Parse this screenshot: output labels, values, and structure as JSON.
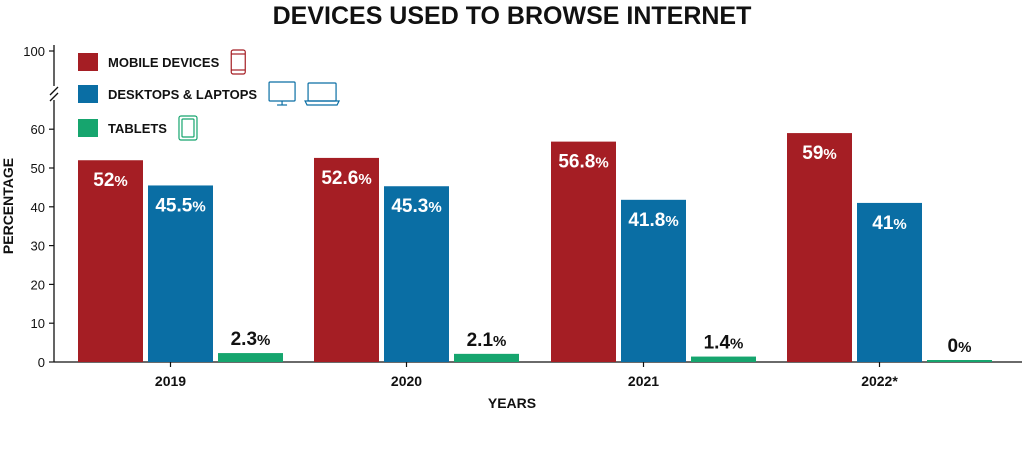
{
  "chart_data": {
    "type": "bar",
    "title": "DEVICES USED TO BROWSE INTERNET",
    "xlabel": "YEARS",
    "ylabel": "PERCENTAGE",
    "categories": [
      "2019",
      "2020",
      "2021",
      "2022*"
    ],
    "series": [
      {
        "name": "MOBILE DEVICES",
        "color": "#a51e24",
        "icon": "smartphone-icon",
        "values": [
          52,
          52.6,
          56.8,
          59
        ],
        "labels": [
          "52",
          "52.6",
          "56.8",
          "59"
        ]
      },
      {
        "name": "DESKTOPS & LAPTOPS",
        "color": "#0a6ea4",
        "icon": "desktop-laptop-icon",
        "values": [
          45.5,
          45.3,
          41.8,
          41
        ],
        "labels": [
          "45.5",
          "45.3",
          "41.8",
          "41"
        ]
      },
      {
        "name": "TABLETS",
        "color": "#16a56e",
        "icon": "tablet-icon",
        "values": [
          2.3,
          2.1,
          1.4,
          0
        ],
        "labels": [
          "2.3",
          "2.1",
          "1.4",
          "0"
        ]
      }
    ],
    "percent_sign": "%",
    "yticks": [
      0,
      10,
      20,
      30,
      40,
      50,
      60,
      100
    ],
    "ylim": [
      0,
      60
    ],
    "y_axis_break": true,
    "grid": false,
    "legend_position": "top-left"
  }
}
